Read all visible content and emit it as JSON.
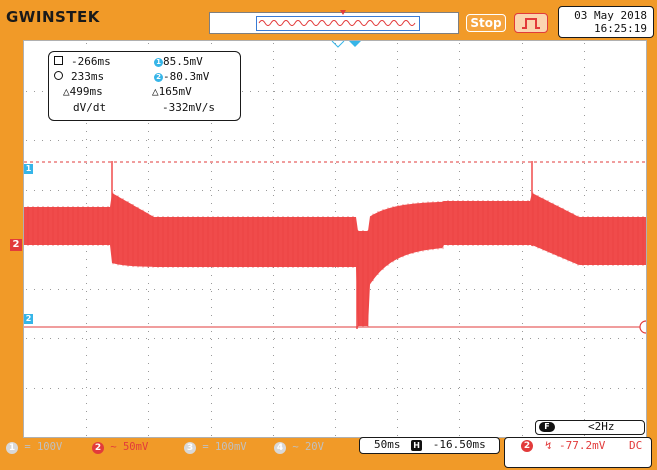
{
  "header": {
    "brand": "GWINSTEK",
    "run_state": "Stop",
    "date": "03 May 2018",
    "time": "16:25:19"
  },
  "cursors": {
    "c1_time": "-266ms",
    "c1_value": "85.5mV",
    "c2_time": "233ms",
    "c2_value": "-80.3mV",
    "delta_time": "△499ms",
    "delta_value": "△165mV",
    "slope_label": "dV/dt",
    "slope_value": "-332mV/s"
  },
  "markers": {
    "cursor1_badge": "1",
    "cursor2_badge": "2",
    "channel2_label": "2"
  },
  "channels": [
    {
      "num": "1",
      "coupling_symbol": "=",
      "scale": "100V",
      "active": false
    },
    {
      "num": "2",
      "coupling_symbol": "~",
      "scale": "50mV",
      "active": true
    },
    {
      "num": "3",
      "coupling_symbol": "=",
      "scale": "100mV",
      "active": false
    },
    {
      "num": "4",
      "coupling_symbol": "~",
      "scale": "20V",
      "active": false
    }
  ],
  "timebase": {
    "scale": "50ms",
    "position_icon": "H",
    "position": "-16.50ms"
  },
  "trigger": {
    "source": "2",
    "slope_symbol": "↯",
    "level": "-77.2mV",
    "coupling": "DC"
  },
  "frequency": {
    "badge": "F",
    "value": "<2Hz"
  },
  "colors": {
    "frame": "#f19a28",
    "ch2_trace": "#f04b4b",
    "cursor_line": "#e23b3b",
    "marker_cyan": "#36b5e8",
    "grid_dot": "#9a9a9a"
  }
}
